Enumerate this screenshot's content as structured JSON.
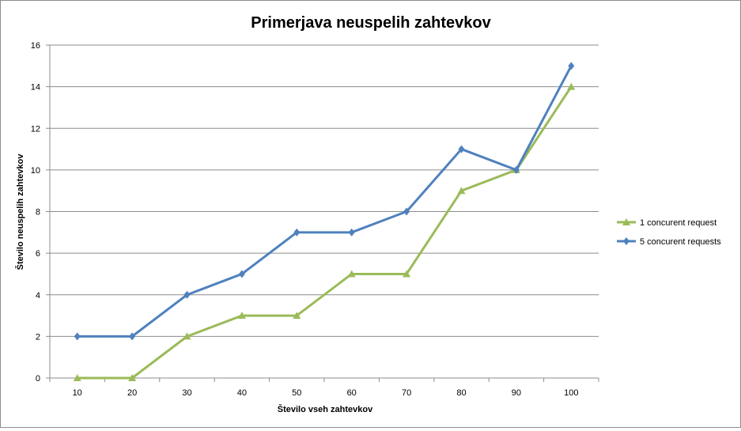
{
  "chart_data": {
    "type": "line",
    "title": "Primerjava neuspelih zahtevkov",
    "xlabel": "Število vseh zahtevkov",
    "ylabel": "Število neuspelih zahtevkov",
    "categories": [
      "10",
      "20",
      "30",
      "40",
      "50",
      "60",
      "70",
      "80",
      "90",
      "100"
    ],
    "ylim": [
      0,
      16
    ],
    "yticks": [
      0,
      2,
      4,
      6,
      8,
      10,
      12,
      14,
      16
    ],
    "grid": true,
    "legend_position": "right",
    "series": [
      {
        "name": "1 concurent request",
        "marker": "triangle",
        "color": "#9bbb59",
        "values": [
          0,
          0,
          2,
          3,
          3,
          5,
          5,
          9,
          10,
          14
        ]
      },
      {
        "name": "5 concurent requests",
        "marker": "diamond",
        "color": "#4f81bd",
        "values": [
          2,
          2,
          4,
          5,
          7,
          7,
          8,
          11,
          10,
          15
        ]
      }
    ]
  }
}
